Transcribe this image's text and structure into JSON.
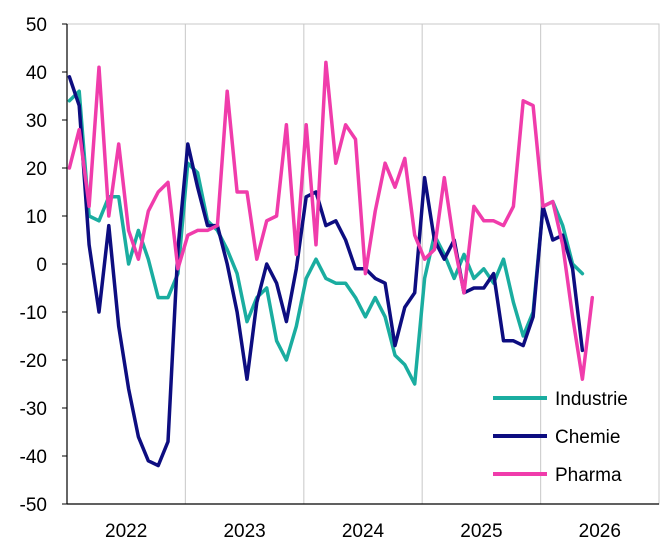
{
  "chart_data": {
    "type": "line",
    "ylim": [
      -50,
      50
    ],
    "yticks": [
      50,
      40,
      30,
      20,
      10,
      0,
      -10,
      -20,
      -30,
      -40,
      -50
    ],
    "xlim": [
      2021.5,
      2026.5
    ],
    "xticks": [
      {
        "label": "2022",
        "x": 2022.0
      },
      {
        "label": "2023",
        "x": 2023.0
      },
      {
        "label": "2024",
        "x": 2024.0
      },
      {
        "label": "2025",
        "x": 2025.0
      },
      {
        "label": "2026",
        "x": 2026.0
      }
    ],
    "grid": "vertical",
    "legend_position": "bottom-right",
    "x_start": 2021.5,
    "x_step": 0.0833333,
    "series": [
      {
        "name": "Industrie",
        "color": "#1aada0",
        "values": [
          34,
          36,
          10,
          9,
          14,
          14,
          0,
          7,
          1,
          -7,
          -7,
          -2,
          21,
          19,
          9,
          7,
          3,
          -2,
          -12,
          -7,
          -5,
          -16,
          -20,
          -13,
          -3,
          1,
          -3,
          -4,
          -4,
          -7,
          -11,
          -7,
          -11,
          -19,
          -21,
          -25,
          -3,
          6,
          2,
          -3,
          2,
          -3,
          -1,
          -4,
          1,
          -8,
          -15,
          -10,
          12,
          13,
          8,
          0,
          -2
        ]
      },
      {
        "name": "Chemie",
        "color": "#0d0d80",
        "values": [
          39,
          33,
          4,
          -10,
          8,
          -13,
          -26,
          -36,
          -41,
          -42,
          -37,
          3,
          25,
          16,
          8,
          8,
          0,
          -10,
          -24,
          -8,
          0,
          -4,
          -12,
          -1,
          14,
          15,
          8,
          9,
          5,
          -1,
          -1,
          -3,
          -4,
          -17,
          -9,
          -6,
          18,
          5,
          1,
          5,
          -6,
          -5,
          -5,
          -2,
          -16,
          -16,
          -17,
          -11,
          12,
          5,
          6,
          -1,
          -18
        ]
      },
      {
        "name": "Pharma",
        "color": "#f03cab",
        "values": [
          20,
          28,
          12,
          41,
          10,
          25,
          7,
          1,
          11,
          15,
          17,
          -1,
          6,
          7,
          7,
          8,
          36,
          15,
          15,
          1,
          9,
          10,
          29,
          2,
          29,
          4,
          42,
          21,
          29,
          26,
          -2,
          11,
          21,
          16,
          22,
          6,
          1,
          3,
          18,
          4,
          -6,
          12,
          9,
          9,
          8,
          12,
          34,
          33,
          12,
          13,
          4,
          -11,
          -24,
          -7
        ]
      }
    ]
  }
}
